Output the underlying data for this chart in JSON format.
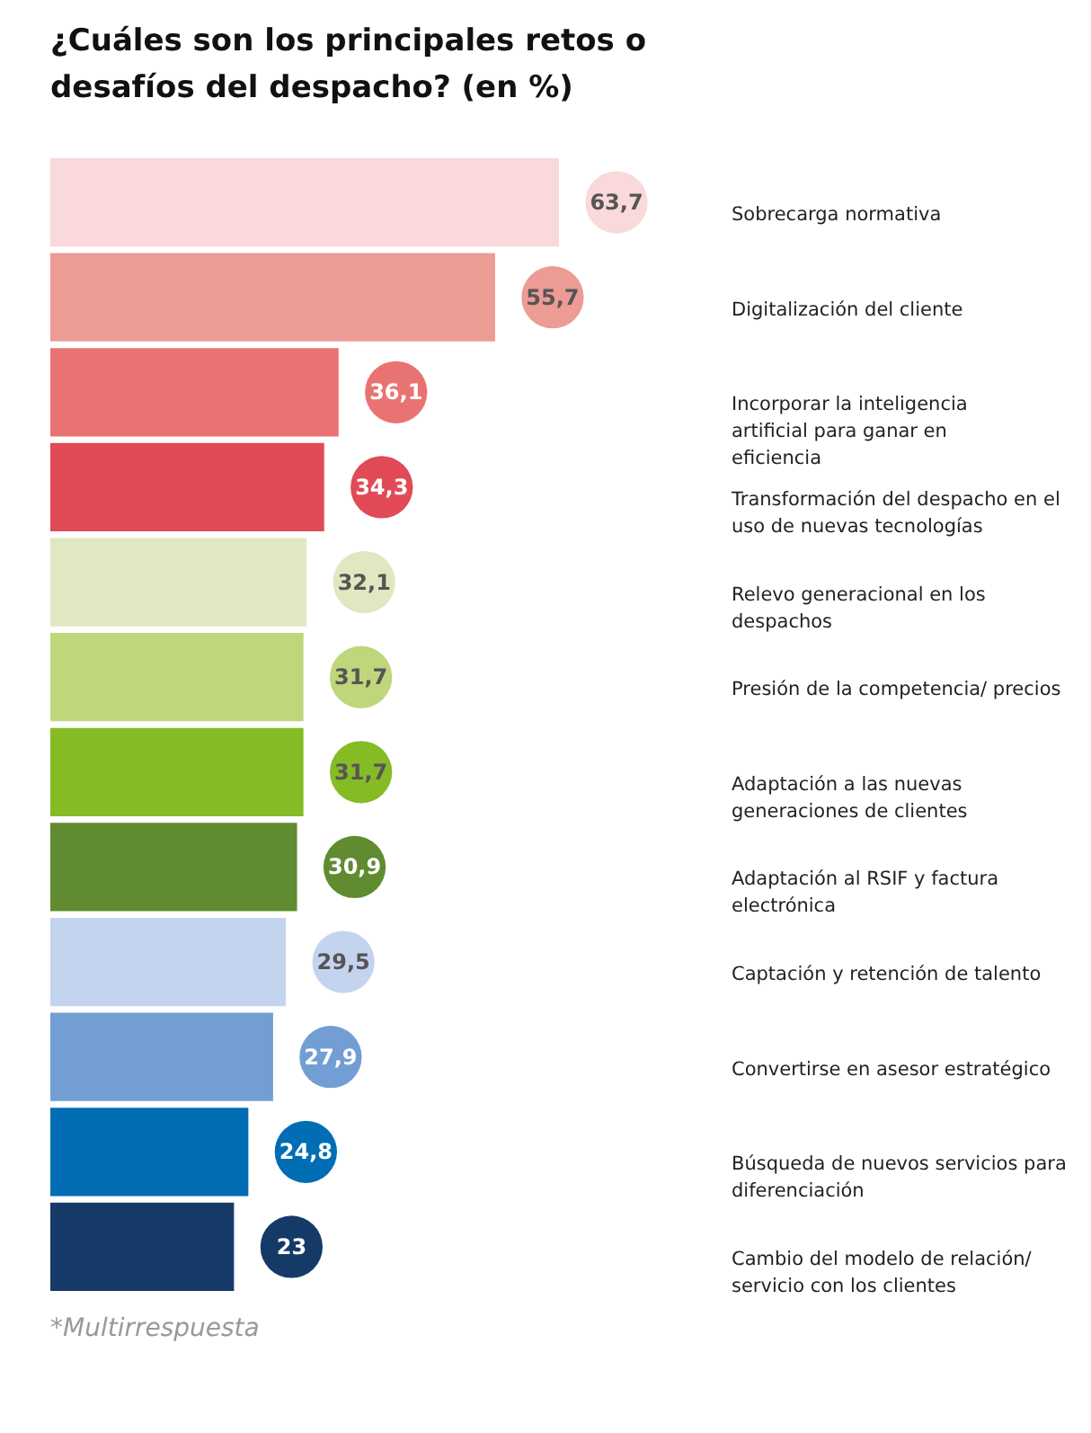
{
  "chart_data": {
    "type": "bar",
    "orientation": "horizontal",
    "title": "¿Cuáles son los principales retos o desafíos del despacho? (en %)",
    "categories": [
      "Sobrecarga normativa",
      "Digitalización del cliente",
      "Incorporar la inteligencia artificial para ganar en eficiencia",
      "Transformación del despacho en el uso de nuevas tecnologías",
      "Relevo generacional en los despachos",
      "Presión de la competencia/ precios",
      "Adaptación a las nuevas generaciones de clientes",
      "Adaptación al RSIF y factura electrónica",
      "Captación y retención de talento",
      "Convertirse en asesor estratégico",
      "Búsqueda de nuevos servicios para diferenciación",
      "Cambio del modelo de relación/ servicio con los clientes"
    ],
    "values": [
      63.7,
      55.7,
      36.1,
      34.3,
      32.1,
      31.7,
      31.7,
      30.9,
      29.5,
      27.9,
      24.8,
      23
    ],
    "value_labels": [
      "63,7",
      "55,7",
      "36,1",
      "34,3",
      "32,1",
      "31,7",
      "31,7",
      "30,9",
      "29,5",
      "27,9",
      "24,8",
      "23"
    ],
    "colors": [
      "#f9d9da",
      "#ed9b95",
      "#e97373",
      "#e14a56",
      "#dfe8c0",
      "#c0d67a",
      "#85bb25",
      "#608b30",
      "#c5d4ee",
      "#729ed3",
      "#006db5",
      "#153a68"
    ],
    "annotations": [
      "*Multirrespuesta"
    ]
  }
}
